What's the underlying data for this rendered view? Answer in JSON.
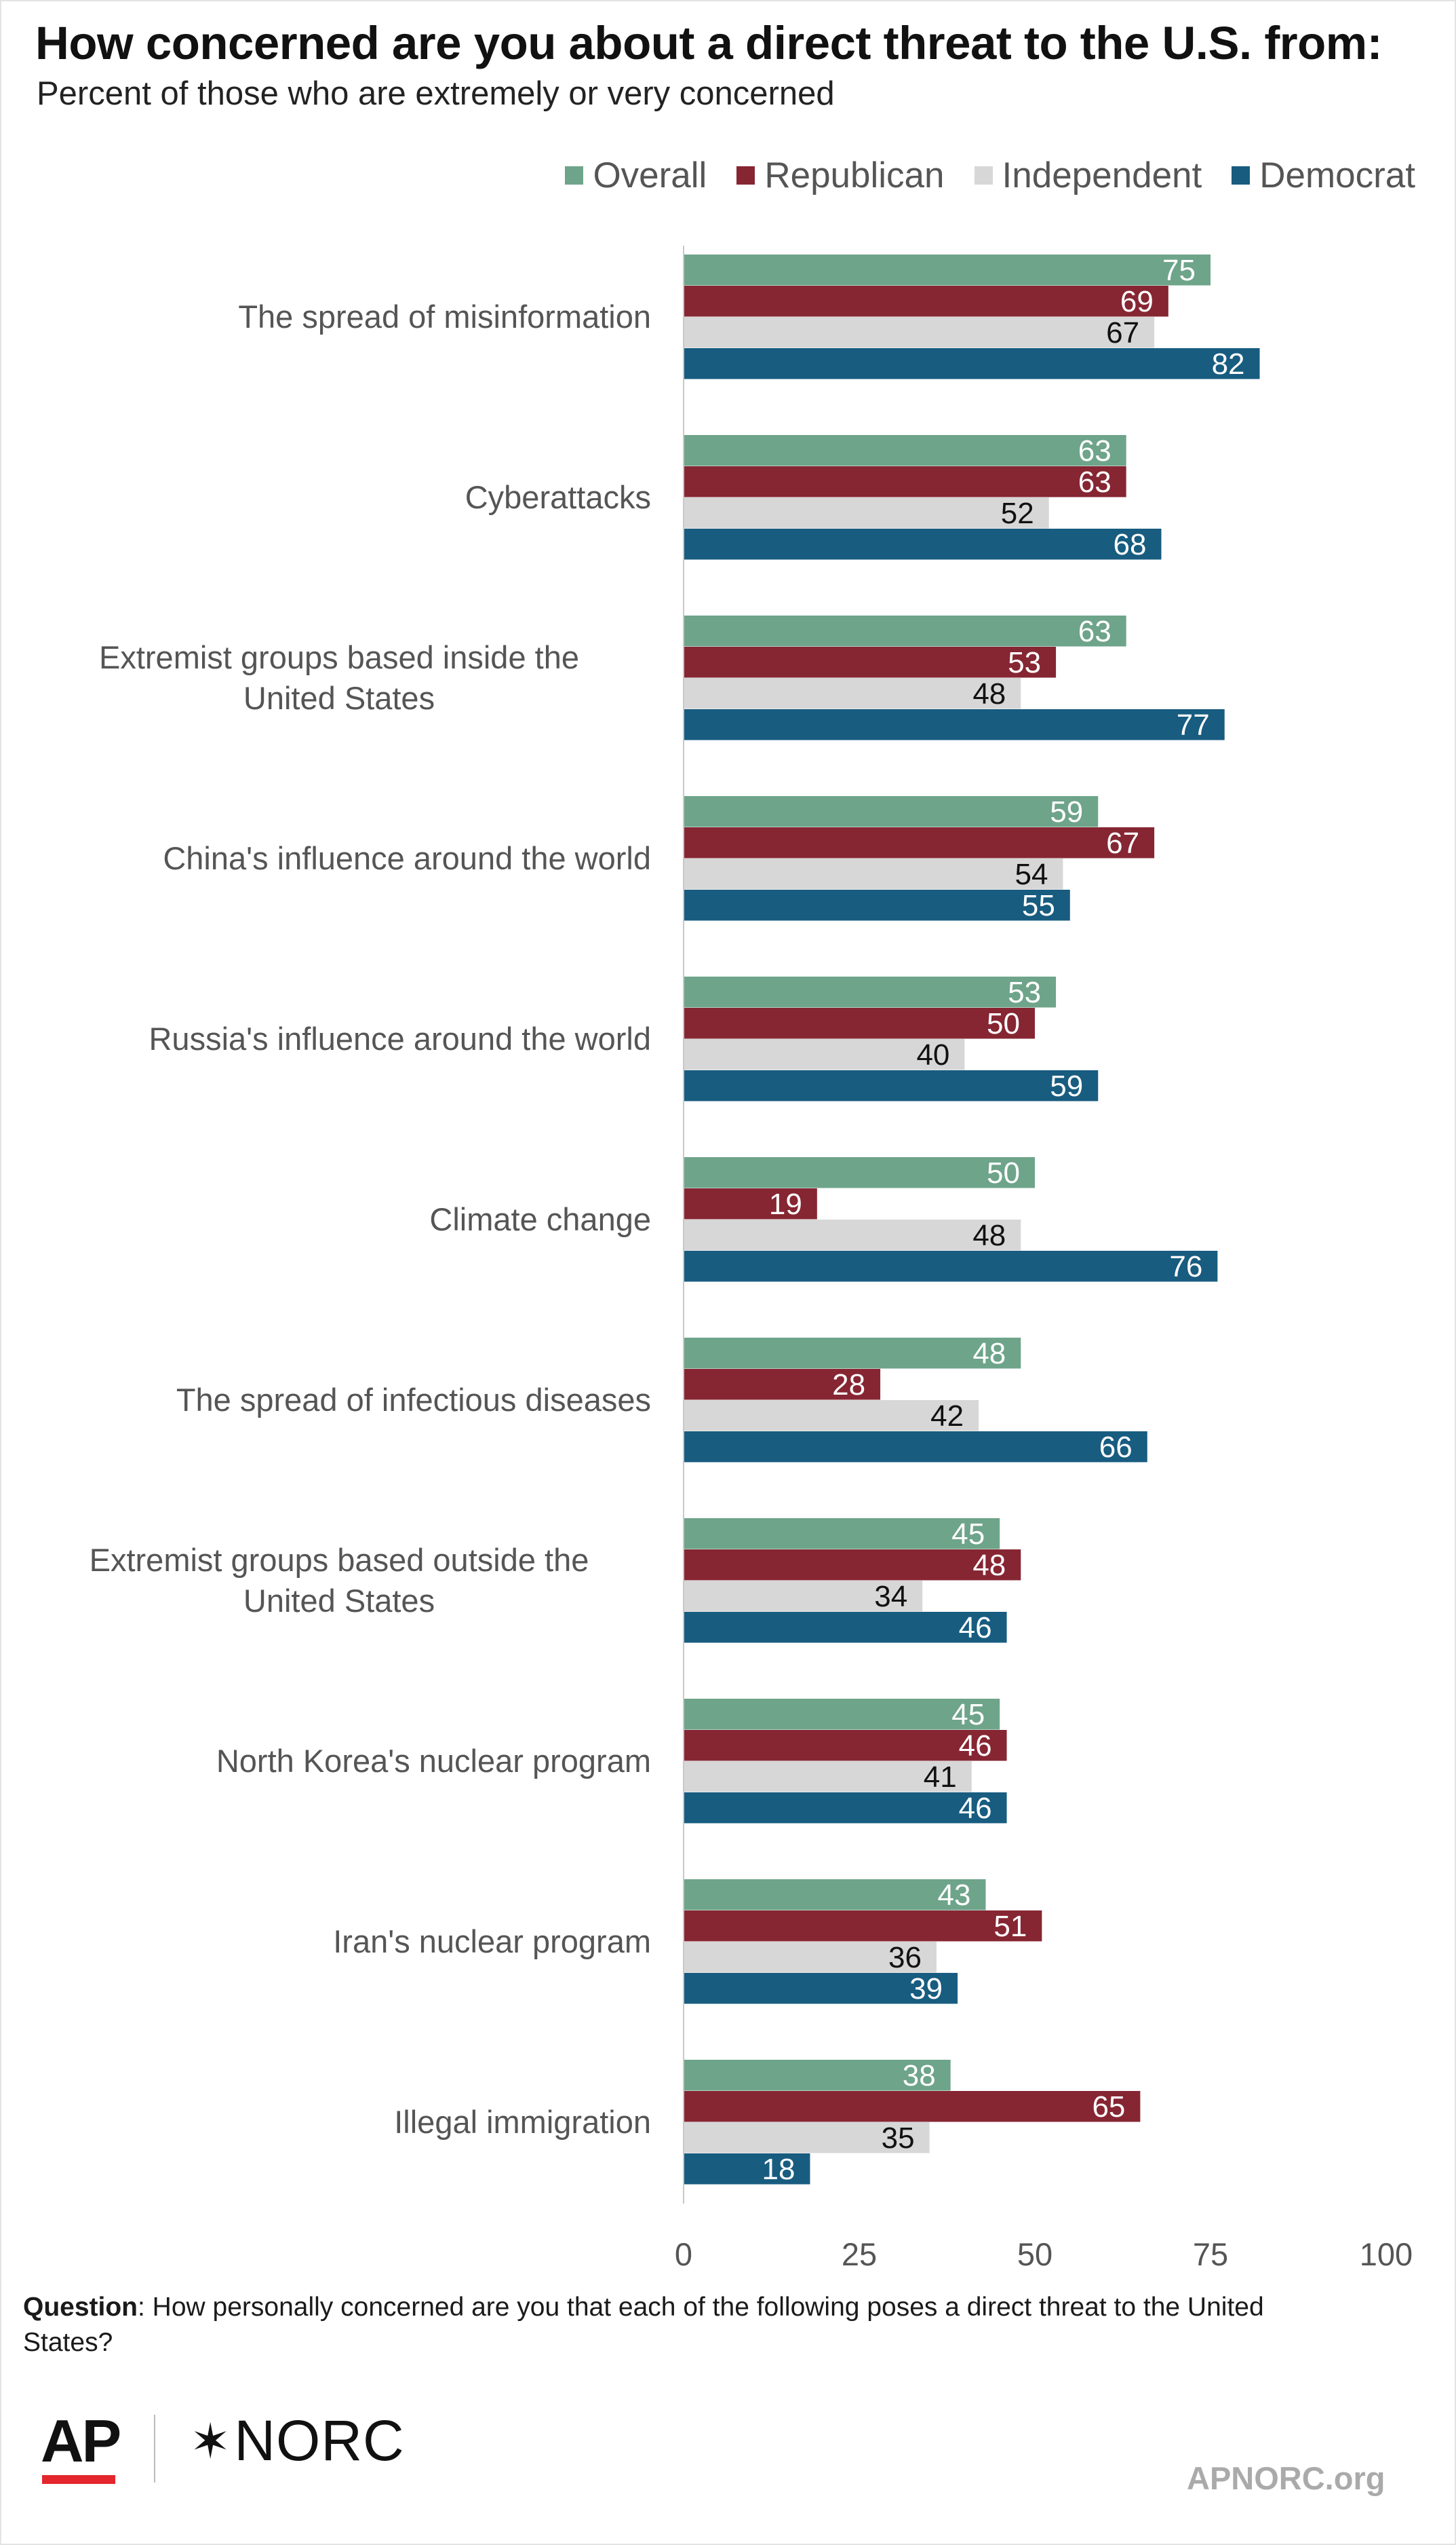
{
  "title": "How concerned are you about a direct threat to the U.S. from:",
  "subtitle": "Percent of those who are extremely or very concerned",
  "legend": [
    {
      "name": "Overall",
      "color": "#6ea48a"
    },
    {
      "name": "Republican",
      "color": "#862633"
    },
    {
      "name": "Independent",
      "color": "#d7d7d7"
    },
    {
      "name": "Democrat",
      "color": "#185c80"
    }
  ],
  "chart_data": {
    "type": "bar",
    "orientation": "horizontal",
    "categories": [
      "The spread of misinformation",
      "Cyberattacks",
      "Extremist groups based inside the United States",
      "China's influence around the world",
      "Russia's influence around the world",
      "Climate change",
      "The spread of infectious diseases",
      "Extremist groups based outside the United States",
      "North Korea's nuclear program",
      "Iran's nuclear program",
      "Illegal immigration"
    ],
    "series": [
      {
        "name": "Overall",
        "color": "#6ea48a",
        "label_color": "#ffffff",
        "values": [
          75,
          63,
          63,
          59,
          53,
          50,
          48,
          45,
          45,
          43,
          38
        ]
      },
      {
        "name": "Republican",
        "color": "#862633",
        "label_color": "#ffffff",
        "values": [
          69,
          63,
          53,
          67,
          50,
          19,
          28,
          48,
          46,
          51,
          65
        ]
      },
      {
        "name": "Independent",
        "color": "#d7d7d7",
        "label_color": "#111111",
        "values": [
          67,
          52,
          48,
          54,
          40,
          48,
          42,
          34,
          41,
          36,
          35
        ]
      },
      {
        "name": "Democrat",
        "color": "#185c80",
        "label_color": "#ffffff",
        "values": [
          82,
          68,
          77,
          55,
          59,
          76,
          66,
          46,
          46,
          39,
          18
        ]
      }
    ],
    "xlim": [
      0,
      100
    ],
    "xticks": [
      0,
      25,
      50,
      75,
      100
    ],
    "xlabel": "",
    "ylabel": "",
    "legend_position": "top-right",
    "grid": false
  },
  "footer": {
    "question_label": "Question",
    "question_text": ": How personally concerned are you that each of the following poses a direct threat to the United States?",
    "logo_ap": "AP",
    "logo_norc": "NORC",
    "site": "APNORC.org"
  }
}
